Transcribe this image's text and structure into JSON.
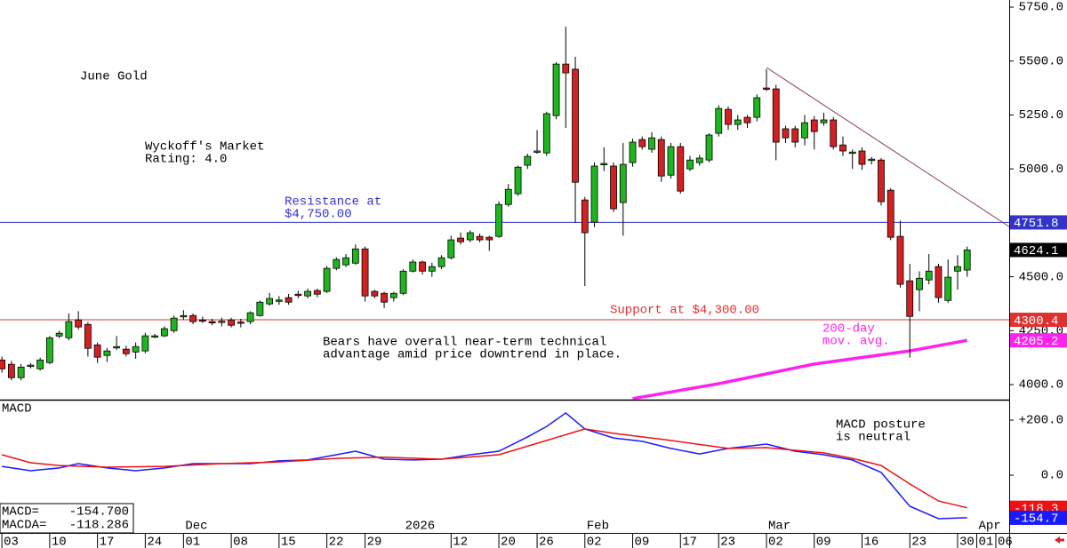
{
  "chart_data": [
    {
      "type": "candlestick",
      "title": "June Gold",
      "rating": [
        "Wyckoff's Market",
        "Rating: 4.0"
      ],
      "resistance_note": [
        "Resistance at",
        "$4,750.00"
      ],
      "support_note": [
        "Support at $4,300.00"
      ],
      "comment": [
        "Bears have overall near-term technical",
        "advantage amid price downtrend in place."
      ],
      "ma_note": [
        "200-day",
        "mov. avg."
      ],
      "xlim": [
        -0.2,
        105.4
      ],
      "ylim": [
        3930,
        5783
      ],
      "yticks": [
        {
          "value": 4000,
          "label": "4000.0"
        },
        {
          "value": 4250,
          "label": "4250.0"
        },
        {
          "value": 4500,
          "label": "4500.0"
        },
        {
          "value": 4750,
          "label": "4750.0"
        },
        {
          "value": 5000,
          "label": "5000.0"
        },
        {
          "value": 5250,
          "label": "5250.0"
        },
        {
          "value": 5500,
          "label": "5500.0"
        },
        {
          "value": 5750,
          "label": "5750.0"
        }
      ],
      "xticks": [
        {
          "value": 0,
          "label": "03"
        },
        {
          "value": 5,
          "label": "10"
        },
        {
          "value": 10,
          "label": "17"
        },
        {
          "value": 15,
          "label": "24"
        },
        {
          "value": 19,
          "label": "01"
        },
        {
          "value": 24,
          "label": "08"
        },
        {
          "value": 29,
          "label": "15"
        },
        {
          "value": 34,
          "label": "22"
        },
        {
          "value": 38,
          "label": "29"
        },
        {
          "value": 47,
          "label": "12"
        },
        {
          "value": 52,
          "label": "20"
        },
        {
          "value": 56,
          "label": "26"
        },
        {
          "value": 61,
          "label": "02"
        },
        {
          "value": 66,
          "label": "09"
        },
        {
          "value": 71,
          "label": "17"
        },
        {
          "value": 75,
          "label": "23"
        },
        {
          "value": 80,
          "label": "02"
        },
        {
          "value": 85,
          "label": "09"
        },
        {
          "value": 90,
          "label": "16"
        },
        {
          "value": 95,
          "label": "23"
        },
        {
          "value": 100,
          "label": "30"
        },
        {
          "value": 102,
          "label": "01"
        },
        {
          "value": 104,
          "label": "06"
        }
      ],
      "months": [
        {
          "value": 19,
          "label": "Dec"
        },
        {
          "value": 42,
          "label": "2026"
        },
        {
          "value": 61,
          "label": "Feb"
        },
        {
          "value": 80,
          "label": "Mar"
        },
        {
          "value": 102,
          "label": "Apr"
        }
      ],
      "up_color": "#1fb51f",
      "down_color": "#d42020",
      "open": [
        4114,
        4094,
        4032,
        4086,
        4073,
        4102,
        4225,
        4217,
        4300,
        4279,
        4184,
        4135,
        4170,
        4164,
        4151,
        4156,
        4222,
        4226,
        4250,
        4318,
        4320,
        4300,
        4292,
        4290,
        4300,
        4290,
        4292,
        4320,
        4374,
        4390,
        4403,
        4419,
        4411,
        4436,
        4432,
        4539,
        4555,
        4563,
        4629,
        4432,
        4423,
        4403,
        4423,
        4526,
        4568,
        4526,
        4547,
        4588,
        4679,
        4671,
        4687,
        4683,
        4687,
        4835,
        4885,
        5017,
        5080,
        5074,
        5247,
        5486,
        5462,
        4856,
        4753,
        5021,
        5013,
        4844,
        5029,
        5136,
        5091,
        5136,
        4971,
        5103,
        5000,
        5029,
        5041,
        5165,
        5276,
        5206,
        5239,
        5239,
        5375,
        5371,
        5186,
        5186,
        5144,
        5227,
        5214,
        5227,
        5111,
        5074,
        5083,
        5041,
        5041,
        4901,
        4687,
        4481,
        4440,
        4485,
        4547,
        4390,
        4526,
        4531
      ],
      "high": [
        4130,
        4110,
        4095,
        4100,
        4125,
        4225,
        4250,
        4330,
        4340,
        4290,
        4195,
        4170,
        4225,
        4180,
        4195,
        4240,
        4235,
        4270,
        4320,
        4345,
        4330,
        4315,
        4305,
        4310,
        4310,
        4305,
        4340,
        4390,
        4425,
        4410,
        4420,
        4435,
        4445,
        4445,
        4550,
        4590,
        4605,
        4650,
        4640,
        4440,
        4430,
        4430,
        4535,
        4580,
        4575,
        4565,
        4600,
        4690,
        4705,
        4715,
        4700,
        4690,
        4850,
        4930,
        5015,
        5070,
        5180,
        5265,
        5495,
        5659,
        5520,
        4870,
        5030,
        5100,
        5030,
        5120,
        5140,
        5150,
        5170,
        5150,
        5120,
        5120,
        5060,
        5065,
        5165,
        5295,
        5290,
        5250,
        5250,
        5345,
        5462,
        5390,
        5200,
        5200,
        5250,
        5245,
        5260,
        5240,
        5150,
        5090,
        5100,
        5055,
        5050,
        4910,
        4760,
        4560,
        4525,
        4605,
        4560,
        4580,
        4600,
        4640
      ],
      "low": [
        4055,
        4020,
        4020,
        4075,
        4065,
        4095,
        4215,
        4205,
        4255,
        4130,
        4100,
        4105,
        4160,
        4130,
        4120,
        4145,
        4215,
        4220,
        4240,
        4300,
        4280,
        4285,
        4275,
        4270,
        4265,
        4265,
        4280,
        4315,
        4365,
        4370,
        4370,
        4400,
        4400,
        4405,
        4425,
        4530,
        4545,
        4555,
        4385,
        4400,
        4355,
        4385,
        4415,
        4520,
        4510,
        4500,
        4535,
        4580,
        4650,
        4660,
        4660,
        4620,
        4680,
        4825,
        4875,
        5000,
        5070,
        5060,
        5230,
        5190,
        4750,
        4457,
        4730,
        4990,
        4800,
        4690,
        5010,
        5090,
        5075,
        4940,
        4955,
        4885,
        4990,
        5015,
        5030,
        5150,
        5180,
        5180,
        5190,
        5220,
        5360,
        5040,
        5120,
        5100,
        5110,
        5090,
        5200,
        5090,
        5060,
        5000,
        4995,
        5020,
        4830,
        4670,
        4450,
        4125,
        4340,
        4465,
        4380,
        4380,
        4440,
        4500
      ],
      "close": [
        4073,
        4032,
        4081,
        4090,
        4114,
        4217,
        4238,
        4292,
        4267,
        4168,
        4127,
        4156,
        4176,
        4143,
        4176,
        4226,
        4226,
        4259,
        4308,
        4320,
        4292,
        4296,
        4290,
        4294,
        4275,
        4285,
        4333,
        4382,
        4399,
        4392,
        4382,
        4415,
        4432,
        4419,
        4539,
        4580,
        4588,
        4629,
        4411,
        4411,
        4382,
        4423,
        4526,
        4568,
        4526,
        4547,
        4588,
        4671,
        4662,
        4704,
        4671,
        4671,
        4835,
        4905,
        5008,
        5058,
        5083,
        5256,
        5486,
        5445,
        4938,
        4704,
        5013,
        5025,
        4815,
        5021,
        5124,
        5103,
        5144,
        4967,
        5103,
        4897,
        5041,
        5050,
        5157,
        5280,
        5206,
        5227,
        5214,
        5330,
        5371,
        5124,
        5144,
        5124,
        5214,
        5173,
        5227,
        5103,
        5083,
        5078,
        5021,
        5045,
        4848,
        4683,
        4465,
        4316,
        4493,
        4526,
        4403,
        4498,
        4547,
        4624.1
      ],
      "moving_average": {
        "color": "#ff22ee",
        "x": [
          66,
          75,
          85,
          95,
          101
        ],
        "values": [
          3935,
          4004,
          4095,
          4156,
          4205.2
        ]
      },
      "trendline": {
        "color": "#8b3a5a",
        "x": [
          80,
          106
        ],
        "values": [
          5470,
          4715
        ]
      },
      "hlines": [
        {
          "value": 4751.8,
          "color": "#3333cc"
        },
        {
          "value": 4300.4,
          "color": "#e03030"
        }
      ]
    },
    {
      "type": "line",
      "title": "MACD",
      "note": [
        "MACD posture",
        "is neutral"
      ],
      "xlim": [
        -0.2,
        105.4
      ],
      "ylim": [
        -209.7,
        267.7
      ],
      "yticks": [
        {
          "value": 200,
          "label": "+200.0"
        },
        {
          "value": 0,
          "label": "0.0"
        }
      ],
      "series": [
        {
          "name": "MACD=",
          "color": "#1a1aff",
          "readout": "-154.700",
          "x": [
            0,
            3,
            6,
            8,
            11,
            14,
            17,
            20,
            23,
            26,
            29,
            32,
            35,
            37,
            40,
            43,
            46,
            49,
            52,
            55,
            57,
            59,
            61,
            64,
            67,
            70,
            73,
            76,
            80,
            83,
            86,
            89,
            92,
            95,
            98,
            101
          ],
          "values": [
            32,
            16,
            26,
            42,
            26,
            16,
            26,
            42,
            42,
            42,
            52,
            55,
            74,
            87,
            58,
            55,
            58,
            74,
            87,
            139,
            177,
            226,
            168,
            135,
            123,
            97,
            77,
            97,
            113,
            87,
            74,
            55,
            10,
            -113,
            -158,
            -154.7
          ]
        },
        {
          "name": "MACDA=",
          "color": "#ee1111",
          "readout": "-118.286",
          "x": [
            0,
            3,
            6,
            11,
            17,
            23,
            29,
            35,
            40,
            46,
            52,
            57,
            61,
            64,
            70,
            76,
            80,
            86,
            89,
            92,
            95,
            98,
            101
          ],
          "values": [
            74,
            45,
            35,
            29,
            32,
            42,
            48,
            61,
            65,
            58,
            74,
            126,
            168,
            152,
            126,
            97,
            100,
            81,
            61,
            35,
            -32,
            -94,
            -118.286
          ],
          "value_labels": [
            null,
            null,
            null,
            null,
            null,
            null,
            null,
            null,
            null,
            null,
            null,
            null,
            null,
            null,
            null,
            null,
            null,
            null,
            null,
            null,
            null,
            null,
            "-118.3"
          ]
        }
      ]
    }
  ]
}
